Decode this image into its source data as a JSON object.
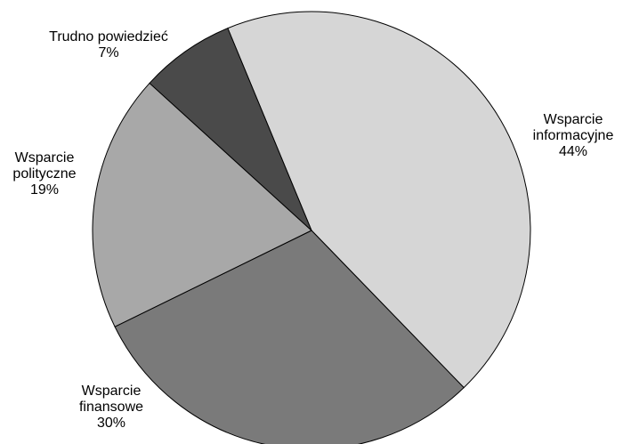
{
  "chart_data": {
    "type": "pie",
    "categories": [
      "Wsparcie informacyjne",
      "Wsparcie finansowe",
      "Wsparcie polityczne",
      "Trudno powiedzieć"
    ],
    "values": [
      44,
      30,
      19,
      7
    ],
    "labels": [
      {
        "lines": [
          "Wsparcie",
          "informacyjne"
        ],
        "value_text": "44%"
      },
      {
        "lines": [
          "Wsparcie",
          "finansowe"
        ],
        "value_text": "30%"
      },
      {
        "lines": [
          "Wsparcie",
          "polityczne"
        ],
        "value_text": "19%"
      },
      {
        "lines": [
          "Trudno powiedzieć"
        ],
        "value_text": "7%"
      }
    ],
    "colors": [
      "#d6d6d6",
      "#7a7a7a",
      "#a8a8a8",
      "#4a4a4a"
    ],
    "start": "top, clockwise",
    "legend": "none"
  }
}
